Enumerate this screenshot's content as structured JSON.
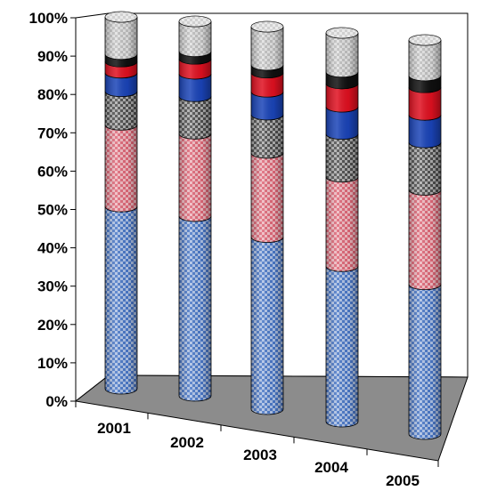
{
  "chart_data": {
    "type": "bar",
    "stacked": "percent",
    "style": "3d-cylinder",
    "categories": [
      "2001",
      "2002",
      "2003",
      "2004",
      "2005"
    ],
    "ylim": [
      0,
      100
    ],
    "yticks": [
      "0%",
      "10%",
      "20%",
      "30%",
      "40%",
      "50%",
      "60%",
      "70%",
      "80%",
      "90%",
      "100%"
    ],
    "grid": false,
    "legend": "none",
    "series": [
      {
        "color": "#4a78c8",
        "pattern": "checker",
        "values": [
          49,
          48,
          45,
          40,
          38
        ]
      },
      {
        "color": "#e06878",
        "pattern": "checker",
        "values": [
          22,
          22,
          22,
          23,
          24
        ]
      },
      {
        "color": "#505050",
        "pattern": "checker",
        "values": [
          9,
          10,
          10,
          11,
          12
        ]
      },
      {
        "color": "#1a44b8",
        "pattern": "solid",
        "values": [
          5,
          6,
          6,
          7,
          7
        ]
      },
      {
        "color": "#e01020",
        "pattern": "solid",
        "values": [
          3,
          4,
          5,
          6,
          7
        ]
      },
      {
        "color": "#101010",
        "pattern": "solid",
        "values": [
          2,
          2,
          2,
          3,
          3
        ]
      },
      {
        "color": "#c0c0c0",
        "pattern": "checker",
        "values": [
          10,
          8,
          10,
          10,
          9
        ]
      }
    ]
  }
}
